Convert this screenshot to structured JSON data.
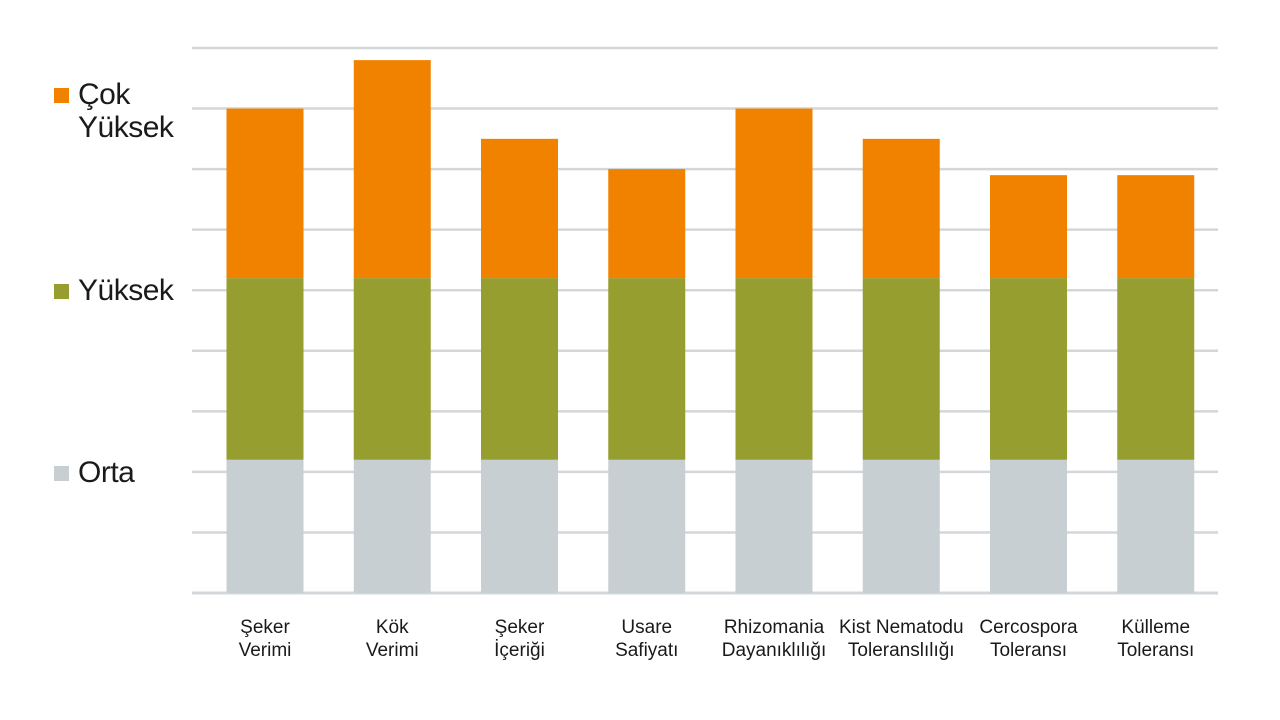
{
  "chart_data": {
    "type": "bar",
    "stacked": true,
    "categories": [
      "Şeker\nVerimi",
      "Kök\nVerimi",
      "Şeker\nİçeriği",
      "Usare\nSafiyatı",
      "Rhizomania\nDayanıklılığı",
      "Kist Nematodu\nToleranslılığı",
      "Cercospora\nToleransı",
      "Külleme\nToleransı"
    ],
    "series": [
      {
        "name": "Orta",
        "color": "#c8cfd3",
        "values": [
          2.2,
          2.2,
          2.2,
          2.2,
          2.2,
          2.2,
          2.2,
          2.2
        ]
      },
      {
        "name": "Yüksek",
        "color": "#969e2f",
        "values": [
          3.0,
          3.0,
          3.0,
          3.0,
          3.0,
          3.0,
          3.0,
          3.0
        ]
      },
      {
        "name": "Çok Yüksek",
        "color": "#f08200",
        "values": [
          2.8,
          3.6,
          2.3,
          1.8,
          2.8,
          2.3,
          1.7,
          1.7
        ]
      }
    ],
    "ylim": [
      0,
      9
    ],
    "grid": true,
    "legend_position": "left",
    "title": "",
    "xlabel": "",
    "ylabel": ""
  },
  "legend": {
    "items": [
      {
        "label": "Çok\nYüksek",
        "color": "#f08200"
      },
      {
        "label": "Yüksek",
        "color": "#969e2f"
      },
      {
        "label": "Orta",
        "color": "#c8cfd3"
      }
    ]
  }
}
